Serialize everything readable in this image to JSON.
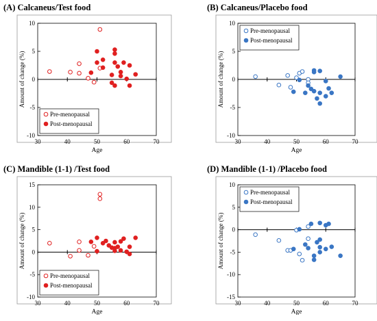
{
  "colors": {
    "test": "#e02020",
    "placebo": "#3a76c4",
    "axis": "#000000",
    "frame": "#999999"
  },
  "chart_data": [
    {
      "panel": "A",
      "type": "scatter",
      "title": "(A) Calcaneus/Test food",
      "xlabel": "Age",
      "ylabel": "Amount of change (%)",
      "xlim": [
        30,
        70
      ],
      "ylim": [
        -10,
        10
      ],
      "xticks": [
        30,
        40,
        50,
        60,
        70
      ],
      "yticks": [
        -10,
        -5,
        0,
        5,
        10
      ],
      "color": "#e02020",
      "legend_position": "bottom-left",
      "series": [
        {
          "name": "Pre-menopausal",
          "marker": "open-circle",
          "points": [
            [
              34,
              1.4
            ],
            [
              41,
              1.3
            ],
            [
              44,
              2.8
            ],
            [
              44,
              1.1
            ],
            [
              47,
              0.2
            ],
            [
              49,
              -0.5
            ],
            [
              51,
              8.9
            ],
            [
              51,
              2.0
            ]
          ]
        },
        {
          "name": "Post-menopausal",
          "marker": "filled-circle",
          "points": [
            [
              48,
              1.2
            ],
            [
              50,
              5.0
            ],
            [
              50,
              3.0
            ],
            [
              52,
              2.1
            ],
            [
              52,
              3.5
            ],
            [
              55,
              0.8
            ],
            [
              55,
              -0.6
            ],
            [
              56,
              5.3
            ],
            [
              56,
              4.6
            ],
            [
              56,
              3.0
            ],
            [
              56,
              -1.1
            ],
            [
              57,
              2.3
            ],
            [
              58,
              1.3
            ],
            [
              58,
              0.6
            ],
            [
              59,
              3.0
            ],
            [
              60,
              0.1
            ],
            [
              61,
              -1.1
            ],
            [
              61,
              2.5
            ],
            [
              63,
              0.9
            ]
          ]
        }
      ]
    },
    {
      "panel": "B",
      "type": "scatter",
      "title": "(B) Calcaneus/Placebo food",
      "xlabel": "Age",
      "ylabel": "Amount of change (%)",
      "xlim": [
        30,
        70
      ],
      "ylim": [
        -10,
        10
      ],
      "xticks": [
        30,
        40,
        50,
        60,
        70
      ],
      "yticks": [
        -10,
        -5,
        0,
        5,
        10
      ],
      "color": "#3a76c4",
      "legend_position": "top-left",
      "series": [
        {
          "name": "Pre-menopausal",
          "marker": "open-circle",
          "points": [
            [
              36,
              0.5
            ],
            [
              44,
              -1.0
            ],
            [
              47,
              0.7
            ],
            [
              48,
              -1.4
            ],
            [
              50,
              0.3
            ],
            [
              51,
              1.1
            ],
            [
              52,
              1.4
            ],
            [
              54,
              0.0
            ],
            [
              54,
              -0.6
            ]
          ]
        },
        {
          "name": "Post-menopausal",
          "marker": "filled-circle",
          "points": [
            [
              49,
              -2.2
            ],
            [
              51,
              -0.1
            ],
            [
              53,
              -2.4
            ],
            [
              54,
              -1.1
            ],
            [
              55,
              -1.7
            ],
            [
              56,
              1.3
            ],
            [
              56,
              1.6
            ],
            [
              56,
              -2.1
            ],
            [
              57,
              -3.4
            ],
            [
              58,
              1.5
            ],
            [
              58,
              -2.4
            ],
            [
              58,
              -4.3
            ],
            [
              60,
              -3.0
            ],
            [
              60,
              -0.3
            ],
            [
              61,
              -1.6
            ],
            [
              62,
              -2.4
            ],
            [
              65,
              0.5
            ]
          ]
        }
      ]
    },
    {
      "panel": "C",
      "type": "scatter",
      "title": "(C) Mandible (1-1) /Test food",
      "xlabel": "Age",
      "ylabel": "Amount of change (%)",
      "xlim": [
        30,
        70
      ],
      "ylim": [
        -10,
        15
      ],
      "xticks": [
        30,
        40,
        50,
        60,
        70
      ],
      "yticks": [
        -10,
        -5,
        0,
        5,
        10,
        15
      ],
      "color": "#e02020",
      "legend_position": "bottom-left",
      "series": [
        {
          "name": "Pre-menopausal",
          "marker": "open-circle",
          "points": [
            [
              34,
              2.0
            ],
            [
              41,
              -0.9
            ],
            [
              44,
              2.3
            ],
            [
              44,
              0.4
            ],
            [
              47,
              -0.7
            ],
            [
              49,
              1.3
            ],
            [
              51,
              12.9
            ],
            [
              51,
              11.9
            ]
          ]
        },
        {
          "name": "Post-menopausal",
          "marker": "filled-circle",
          "points": [
            [
              48,
              2.3
            ],
            [
              50,
              3.2
            ],
            [
              50,
              0.2
            ],
            [
              52,
              2.0
            ],
            [
              53,
              2.5
            ],
            [
              54,
              1.5
            ],
            [
              55,
              1.0
            ],
            [
              56,
              0.9
            ],
            [
              56,
              2.2
            ],
            [
              56,
              0.3
            ],
            [
              57,
              1.2
            ],
            [
              58,
              0.4
            ],
            [
              58,
              2.4
            ],
            [
              59,
              3.0
            ],
            [
              60,
              0.1
            ],
            [
              61,
              -0.4
            ],
            [
              61,
              1.2
            ],
            [
              63,
              3.2
            ]
          ]
        }
      ]
    },
    {
      "panel": "D",
      "type": "scatter",
      "title": "(D) Mandible (1-1) /Placebo food",
      "xlabel": "Age",
      "ylabel": "Amount of change (%)",
      "xlim": [
        30,
        70
      ],
      "ylim": [
        -15,
        10
      ],
      "xticks": [
        30,
        40,
        50,
        60,
        70
      ],
      "yticks": [
        -15,
        -10,
        -5,
        0,
        5,
        10
      ],
      "color": "#3a76c4",
      "legend_position": "top-left",
      "series": [
        {
          "name": "Pre-menopausal",
          "marker": "open-circle",
          "points": [
            [
              36,
              -1.1
            ],
            [
              44,
              -2.4
            ],
            [
              47,
              -4.6
            ],
            [
              48,
              -4.6
            ],
            [
              50,
              -0.1
            ],
            [
              51,
              -5.4
            ],
            [
              52,
              -6.8
            ],
            [
              54,
              0.7
            ],
            [
              54,
              -2.0
            ]
          ]
        },
        {
          "name": "Post-menopausal",
          "marker": "filled-circle",
          "points": [
            [
              49,
              -4.3
            ],
            [
              51,
              0.1
            ],
            [
              53,
              -3.3
            ],
            [
              54,
              -4.1
            ],
            [
              55,
              1.3
            ],
            [
              56,
              -5.8
            ],
            [
              56,
              -6.7
            ],
            [
              57,
              -2.8
            ],
            [
              58,
              -2.2
            ],
            [
              58,
              1.5
            ],
            [
              58,
              -3.9
            ],
            [
              58,
              -5.0
            ],
            [
              60,
              -4.3
            ],
            [
              60,
              1.0
            ],
            [
              61,
              1.3
            ],
            [
              62,
              -3.8
            ],
            [
              65,
              -5.8
            ]
          ]
        }
      ]
    }
  ]
}
